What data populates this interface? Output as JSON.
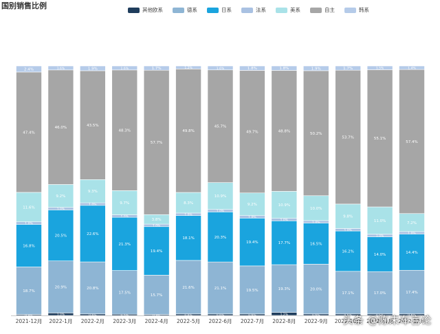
{
  "chart_data": {
    "type": "bar",
    "stacked": true,
    "percent_stacked": true,
    "title": "国别销售比例",
    "categories": [
      "2021-12月",
      "2022-1月",
      "2022-2月",
      "2022-3月",
      "2022-4月",
      "2022-5月",
      "2022-6月",
      "2022-7月",
      "2022-8月",
      "2022-9月",
      "2022-10月",
      "2022-11月",
      "2022-12月"
    ],
    "series": [
      {
        "name": "其他欧系",
        "color": "#1f3d5c",
        "values": [
          0.4,
          1.0,
          0.6,
          0.5,
          0.4,
          0.6,
          0.6,
          0.6,
          1.2,
          0.6,
          0.6,
          0.6,
          0.6
        ]
      },
      {
        "name": "德系",
        "color": "#8eb5d4",
        "values": [
          18.7,
          20.9,
          20.8,
          17.5,
          15.7,
          21.6,
          21.1,
          19.5,
          19.3,
          20.0,
          17.1,
          17.0,
          17.4
        ]
      },
      {
        "name": "日系",
        "color": "#1aa4de",
        "values": [
          16.8,
          20.5,
          22.6,
          21.3,
          19.4,
          18.1,
          20.3,
          19.4,
          17.7,
          16.5,
          16.2,
          14.0,
          14.4
        ]
      },
      {
        "name": "法系",
        "color": "#a9c1e2",
        "values": [
          1.0,
          1.0,
          1.0,
          1.0,
          1.0,
          1.0,
          1.0,
          1.0,
          1.0,
          1.0,
          1.0,
          1.0,
          1.0
        ]
      },
      {
        "name": "美系",
        "color": "#a9e2e8",
        "values": [
          11.6,
          9.2,
          9.3,
          9.7,
          3.8,
          8.3,
          10.9,
          9.2,
          10.9,
          10.0,
          9.8,
          11.0,
          7.2
        ]
      },
      {
        "name": "自主",
        "color": "#a6a6a6",
        "values": [
          47.4,
          46.0,
          43.5,
          48.3,
          57.7,
          49.8,
          45.7,
          49.7,
          48.8,
          50.2,
          53.7,
          55.1,
          57.4
        ]
      },
      {
        "name": "韩系",
        "color": "#b5cbe9",
        "values": [
          2.4,
          1.6,
          1.9,
          1.6,
          1.7,
          1.2,
          1.6,
          1.8,
          1.8,
          1.9,
          1.7,
          1.5,
          1.4
        ]
      }
    ],
    "labels": [
      {
        "0": "0.4%",
        "1": "18.7%",
        "2": "16.8%",
        "3": "1.0%",
        "4": "11.6%",
        "5": "47.4%",
        "6": "2.4%"
      },
      {
        "0": "1.0%",
        "1": "20.9%",
        "2": "20.5%",
        "3": "1.0%",
        "4": "9.2%",
        "5": "46.0%",
        "6": "1.6%"
      },
      {
        "0": "0.6%",
        "1": "20.8%",
        "2": "22.6%",
        "3": "1.0%",
        "4": "9.3%",
        "5": "43.5%",
        "6": "1.9%"
      },
      {
        "0": "0.5%",
        "1": "17.5%",
        "2": "21.3%",
        "3": "1.0%",
        "4": "9.7%",
        "5": "48.3%",
        "6": "1.6%"
      },
      {
        "0": "0.4%",
        "1": "15.7%",
        "2": "19.4%",
        "3": "1.0%",
        "4": "3.8%",
        "5": "57.7%",
        "6": "1.7%"
      },
      {
        "0": "0.6%",
        "1": "21.6%",
        "2": "18.1%",
        "3": "1.0%",
        "4": "8.3%",
        "5": "49.8%",
        "6": "1.2%"
      },
      {
        "0": "0.6%",
        "1": "21.1%",
        "2": "20.3%",
        "3": "1.0%",
        "4": "10.9%",
        "5": "45.7%",
        "6": "1.6%"
      },
      {
        "0": "0.6%",
        "1": "19.5%",
        "2": "19.4%",
        "3": "1.0%",
        "4": "9.2%",
        "5": "49.7%",
        "6": "1.8%"
      },
      {
        "0": "1.2%",
        "1": "19.3%",
        "2": "17.7%",
        "3": "1.0%",
        "4": "10.9%",
        "5": "48.8%",
        "6": "1.8%"
      },
      {
        "0": "0.6%",
        "1": "20.0%",
        "2": "16.5%",
        "3": "1.0%",
        "4": "10.0%",
        "5": "50.2%",
        "6": "1.9%"
      },
      {
        "0": "0.6%",
        "1": "17.1%",
        "2": "16.2%",
        "3": "1.0%",
        "4": "9.8%",
        "5": "53.7%",
        "6": "1.7%"
      },
      {
        "0": "0.6%",
        "1": "17.0%",
        "2": "14.0%",
        "3": "1.0%",
        "4": "11.0%",
        "5": "55.1%",
        "6": "1.5%"
      },
      {
        "0": "0.6%",
        "1": "17.4%",
        "2": "14.4%",
        "3": "1.0%",
        "4": "7.2%",
        "5": "57.4%",
        "6": "1.4%"
      }
    ],
    "legend_position": "top",
    "grid": false,
    "ylim": [
      0,
      100
    ]
  },
  "watermark": "头条 @陈未车言论"
}
